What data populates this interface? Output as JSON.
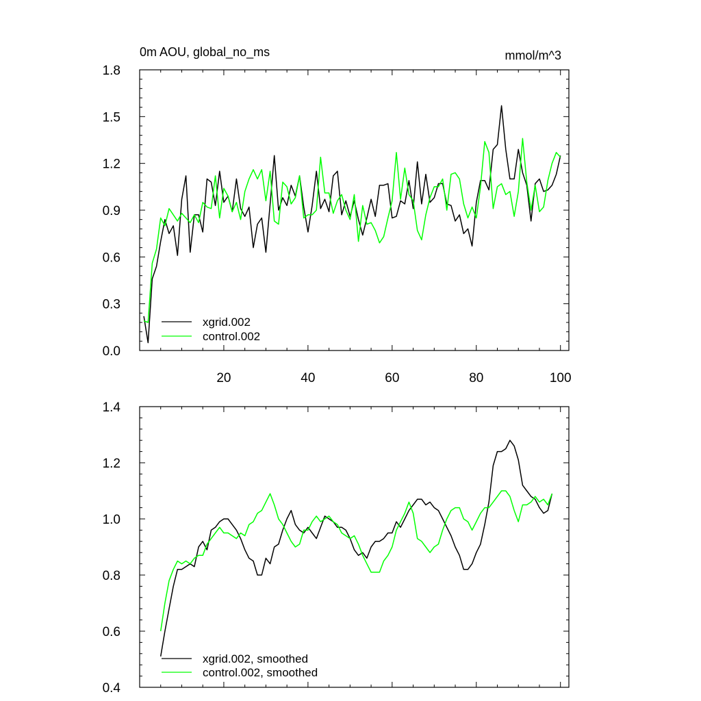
{
  "chart_data": [
    {
      "type": "line",
      "title_left": "0m AOU, global_no_ms",
      "title_right": "mmol/m^3",
      "xlim": [
        0,
        102
      ],
      "ylim": [
        0.0,
        1.8
      ],
      "xticks": [
        20,
        40,
        60,
        80,
        100
      ],
      "xtick_labels": [
        "20",
        "40",
        "60",
        "80",
        "100"
      ],
      "yticks": [
        0.0,
        0.3,
        0.6,
        0.9,
        1.2,
        1.5,
        1.8
      ],
      "ytick_labels": [
        "0.0",
        "0.3",
        "0.6",
        "0.9",
        "1.2",
        "1.5",
        "1.8"
      ],
      "x_start": 1,
      "legend_position": "bottom-left",
      "series": [
        {
          "name": "xgrid.002",
          "color": "#000000",
          "values": [
            0.22,
            0.05,
            0.46,
            0.54,
            0.7,
            0.84,
            0.75,
            0.8,
            0.61,
            0.97,
            1.12,
            0.63,
            0.87,
            0.87,
            0.76,
            1.1,
            1.08,
            0.93,
            1.15,
            0.95,
            0.99,
            0.89,
            1.1,
            0.91,
            0.86,
            0.92,
            0.66,
            0.81,
            0.85,
            0.63,
            0.94,
            1.25,
            0.9,
            0.98,
            0.93,
            1.06,
            0.99,
            1.12,
            0.92,
            0.76,
            0.93,
            1.15,
            0.91,
            0.97,
            0.89,
            1.12,
            1.15,
            0.87,
            0.96,
            0.86,
            0.96,
            0.84,
            0.74,
            0.85,
            0.97,
            0.86,
            1.06,
            1.06,
            1.07,
            0.85,
            0.86,
            0.96,
            0.94,
            1.09,
            0.91,
            1.21,
            0.94,
            1.13,
            0.95,
            0.98,
            1.07,
            1.07,
            0.94,
            0.93,
            0.83,
            0.87,
            0.75,
            0.78,
            0.67,
            0.95,
            1.09,
            1.09,
            1.03,
            1.29,
            1.32,
            1.57,
            1.29,
            1.1,
            1.1,
            1.29,
            1.14,
            1.06,
            0.83,
            1.07,
            1.1,
            1.02,
            1.03,
            1.06,
            1.13,
            1.25
          ]
        },
        {
          "name": "control.002",
          "color": "#00ff00",
          "values": [
            0.19,
            0.18,
            0.56,
            0.65,
            0.85,
            0.8,
            0.91,
            0.87,
            0.83,
            0.88,
            0.85,
            0.82,
            0.87,
            0.82,
            0.95,
            0.92,
            0.91,
            1.12,
            0.85,
            1.04,
            0.99,
            0.89,
            0.95,
            0.84,
            1.02,
            1.1,
            1.16,
            1.1,
            1.16,
            0.96,
            1.15,
            0.83,
            0.81,
            1.08,
            1.05,
            0.94,
            0.98,
            1.12,
            0.85,
            0.87,
            0.87,
            0.9,
            1.24,
            1.01,
            1.01,
            0.88,
            0.96,
            1.0,
            0.9,
            0.84,
            1.0,
            0.7,
            0.93,
            0.81,
            0.82,
            0.77,
            0.69,
            0.73,
            0.85,
            0.96,
            1.27,
            0.97,
            1.17,
            1.0,
            0.96,
            0.77,
            0.71,
            0.87,
            0.98,
            1.05,
            1.05,
            1.1,
            0.9,
            1.13,
            1.14,
            1.1,
            0.94,
            0.85,
            0.92,
            0.85,
            1.05,
            1.34,
            1.27,
            0.91,
            1.05,
            1.07,
            1.0,
            1.02,
            0.86,
            1.02,
            1.36,
            1.08,
            0.9,
            1.06,
            0.89,
            0.92,
            1.09,
            1.2,
            1.27,
            1.24
          ]
        }
      ]
    },
    {
      "type": "line",
      "xlim": [
        0,
        102
      ],
      "ylim": [
        0.4,
        1.4
      ],
      "xticks": [
        20,
        40,
        60,
        80,
        100
      ],
      "yticks": [
        0.4,
        0.6,
        0.8,
        1.0,
        1.2,
        1.4
      ],
      "ytick_labels": [
        "0.4",
        "0.6",
        "0.8",
        "1.0",
        "1.2",
        "1.4"
      ],
      "x_start": 5,
      "legend_position": "bottom-left",
      "series": [
        {
          "name": "xgrid.002, smoothed",
          "color": "#000000",
          "values": [
            0.51,
            0.6,
            0.68,
            0.76,
            0.82,
            0.82,
            0.83,
            0.84,
            0.83,
            0.9,
            0.92,
            0.89,
            0.96,
            0.97,
            0.99,
            1.0,
            1.0,
            0.98,
            0.96,
            0.93,
            0.89,
            0.86,
            0.85,
            0.8,
            0.8,
            0.86,
            0.84,
            0.9,
            0.91,
            0.96,
            1.0,
            1.03,
            0.98,
            0.96,
            0.95,
            0.97,
            0.95,
            0.93,
            0.97,
            1.01,
            1.0,
            0.99,
            0.97,
            0.97,
            0.96,
            0.93,
            0.89,
            0.87,
            0.88,
            0.86,
            0.9,
            0.92,
            0.92,
            0.93,
            0.95,
            0.95,
            0.99,
            0.97,
            1.0,
            1.03,
            1.05,
            1.07,
            1.07,
            1.05,
            1.06,
            1.04,
            1.03,
            1.0,
            0.97,
            0.94,
            0.9,
            0.87,
            0.82,
            0.82,
            0.84,
            0.88,
            0.91,
            0.98,
            1.06,
            1.19,
            1.24,
            1.24,
            1.25,
            1.28,
            1.26,
            1.21,
            1.12,
            1.1,
            1.08,
            1.07,
            1.04,
            1.02,
            1.03,
            1.09
          ]
        },
        {
          "name": "control.002, smoothed",
          "color": "#00ff00",
          "values": [
            0.6,
            0.7,
            0.78,
            0.82,
            0.85,
            0.84,
            0.85,
            0.84,
            0.86,
            0.87,
            0.87,
            0.91,
            0.93,
            0.95,
            0.97,
            0.95,
            0.95,
            0.94,
            0.93,
            0.95,
            0.94,
            0.98,
            0.99,
            1.02,
            1.03,
            1.06,
            1.09,
            1.05,
            1.0,
            0.98,
            0.95,
            0.92,
            0.9,
            0.91,
            0.96,
            0.96,
            0.99,
            1.01,
            0.99,
            1.0,
            1.01,
            0.99,
            0.98,
            0.95,
            0.94,
            0.93,
            0.94,
            0.91,
            0.87,
            0.84,
            0.81,
            0.81,
            0.81,
            0.85,
            0.87,
            0.9,
            0.96,
            0.99,
            1.02,
            1.06,
            1.02,
            0.93,
            0.92,
            0.9,
            0.88,
            0.9,
            0.91,
            0.96,
            1.0,
            1.03,
            1.04,
            1.04,
            1.0,
            0.99,
            0.96,
            0.99,
            1.02,
            1.04,
            1.04,
            1.06,
            1.08,
            1.1,
            1.1,
            1.08,
            1.03,
            0.99,
            1.05,
            1.05,
            1.06,
            1.08,
            1.06,
            1.07,
            1.05,
            1.09
          ]
        }
      ]
    }
  ]
}
